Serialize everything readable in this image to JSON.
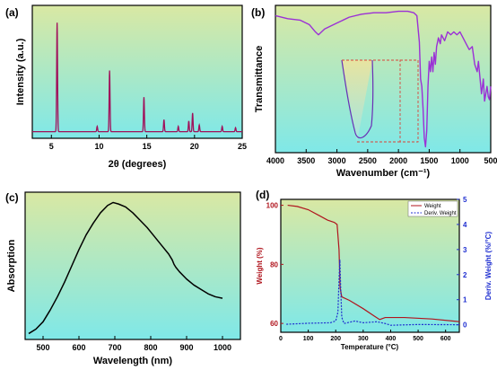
{
  "colors": {
    "grad_top_green": "#d9e8a3",
    "grad_bottom_cyan": "#7fe8e8",
    "xrd_line": "#a0105a",
    "ftir_line": "#9b30d6",
    "uv_line": "#000000",
    "tga_weight": "#b0151e",
    "tga_deriv": "#1f2fd0",
    "inset_frame": "#d9453a"
  },
  "chart_data": [
    {
      "panel": "(a)",
      "type": "line",
      "xlabel": "2θ (degrees)",
      "ylabel": "Intensity (a.u.)",
      "xlim": [
        3,
        25
      ],
      "ylim": [
        0,
        1
      ],
      "x_ticks": [
        5,
        10,
        15,
        20,
        25
      ],
      "y_ticks_labeled": false,
      "peaks": [
        {
          "x": 5.6,
          "y": 0.82
        },
        {
          "x": 9.8,
          "y": 0.04
        },
        {
          "x": 11.1,
          "y": 0.46
        },
        {
          "x": 14.7,
          "y": 0.26
        },
        {
          "x": 16.8,
          "y": 0.09
        },
        {
          "x": 18.3,
          "y": 0.04
        },
        {
          "x": 19.4,
          "y": 0.08
        },
        {
          "x": 19.8,
          "y": 0.14
        },
        {
          "x": 20.5,
          "y": 0.05
        },
        {
          "x": 22.9,
          "y": 0.04
        },
        {
          "x": 24.3,
          "y": 0.03
        }
      ],
      "baseline": 0.05
    },
    {
      "panel": "(b)",
      "type": "line",
      "xlabel": "Wavenumber (cm⁻¹)",
      "ylabel": "Transmittance",
      "xlim": [
        4000,
        500
      ],
      "ylim": [
        0,
        1
      ],
      "x_ticks": [
        4000,
        3500,
        3000,
        2500,
        2000,
        1500,
        1000,
        500
      ],
      "y_ticks_labeled": false,
      "points": [
        [
          4000,
          0.93
        ],
        [
          3800,
          0.91
        ],
        [
          3600,
          0.9
        ],
        [
          3450,
          0.87
        ],
        [
          3350,
          0.82
        ],
        [
          3300,
          0.8
        ],
        [
          3200,
          0.84
        ],
        [
          3000,
          0.88
        ],
        [
          2800,
          0.92
        ],
        [
          2600,
          0.94
        ],
        [
          2400,
          0.95
        ],
        [
          2200,
          0.95
        ],
        [
          2000,
          0.96
        ],
        [
          1850,
          0.96
        ],
        [
          1750,
          0.95
        ],
        [
          1700,
          0.93
        ],
        [
          1660,
          0.75
        ],
        [
          1640,
          0.5
        ],
        [
          1620,
          0.45
        ],
        [
          1600,
          0.3
        ],
        [
          1580,
          0.1
        ],
        [
          1560,
          0.04
        ],
        [
          1540,
          0.15
        ],
        [
          1520,
          0.45
        ],
        [
          1500,
          0.62
        ],
        [
          1480,
          0.55
        ],
        [
          1460,
          0.65
        ],
        [
          1440,
          0.55
        ],
        [
          1420,
          0.68
        ],
        [
          1400,
          0.6
        ],
        [
          1380,
          0.72
        ],
        [
          1350,
          0.78
        ],
        [
          1320,
          0.74
        ],
        [
          1300,
          0.8
        ],
        [
          1250,
          0.76
        ],
        [
          1200,
          0.82
        ],
        [
          1150,
          0.8
        ],
        [
          1100,
          0.82
        ],
        [
          1050,
          0.8
        ],
        [
          1000,
          0.82
        ],
        [
          950,
          0.78
        ],
        [
          900,
          0.74
        ],
        [
          850,
          0.7
        ],
        [
          800,
          0.72
        ],
        [
          760,
          0.6
        ],
        [
          720,
          0.55
        ],
        [
          700,
          0.62
        ],
        [
          650,
          0.4
        ],
        [
          620,
          0.5
        ],
        [
          600,
          0.35
        ],
        [
          560,
          0.45
        ],
        [
          540,
          0.38
        ],
        [
          520,
          0.36
        ],
        [
          500,
          0.45
        ]
      ],
      "inset": "magnified band around 1600 cm⁻¹"
    },
    {
      "panel": "(c)",
      "type": "line",
      "xlabel": "Wavelength (nm)",
      "ylabel": "Absorption",
      "xlim": [
        450,
        1050
      ],
      "ylim": [
        0,
        1
      ],
      "x_ticks": [
        500,
        600,
        700,
        800,
        900,
        1000
      ],
      "y_ticks_labeled": false,
      "points": [
        [
          460,
          0.04
        ],
        [
          480,
          0.07
        ],
        [
          500,
          0.12
        ],
        [
          520,
          0.2
        ],
        [
          540,
          0.29
        ],
        [
          560,
          0.39
        ],
        [
          580,
          0.5
        ],
        [
          600,
          0.61
        ],
        [
          620,
          0.71
        ],
        [
          640,
          0.79
        ],
        [
          660,
          0.86
        ],
        [
          680,
          0.91
        ],
        [
          695,
          0.93
        ],
        [
          710,
          0.92
        ],
        [
          730,
          0.9
        ],
        [
          750,
          0.86
        ],
        [
          770,
          0.81
        ],
        [
          790,
          0.76
        ],
        [
          810,
          0.7
        ],
        [
          830,
          0.64
        ],
        [
          850,
          0.58
        ],
        [
          860,
          0.54
        ],
        [
          865,
          0.51
        ],
        [
          870,
          0.49
        ],
        [
          880,
          0.46
        ],
        [
          900,
          0.41
        ],
        [
          920,
          0.37
        ],
        [
          940,
          0.34
        ],
        [
          960,
          0.31
        ],
        [
          980,
          0.29
        ],
        [
          1000,
          0.28
        ]
      ]
    },
    {
      "panel": "(d)",
      "type": "line",
      "xlabel": "Temperature (°C)",
      "ylabel": "Weight (%)",
      "y2label": "Deriv. Weight (%/°C)",
      "xlim": [
        0,
        650
      ],
      "ylim": [
        57,
        102
      ],
      "y2lim": [
        -0.3,
        5
      ],
      "x_ticks": [
        0,
        100,
        200,
        300,
        400,
        500,
        600
      ],
      "y_ticks": [
        60,
        80,
        100
      ],
      "y2_ticks": [
        0,
        1,
        2,
        3,
        4,
        5
      ],
      "legend": [
        "Weight",
        "Deriv. Weight"
      ],
      "legend_position": "top-right",
      "series": [
        {
          "name": "Weight",
          "points": [
            [
              25,
              100
            ],
            [
              60,
              99.6
            ],
            [
              100,
              98.5
            ],
            [
              140,
              96.5
            ],
            [
              170,
              95.0
            ],
            [
              195,
              94.2
            ],
            [
              205,
              93.5
            ],
            [
              212,
              85
            ],
            [
              216,
              72
            ],
            [
              222,
              69
            ],
            [
              250,
              67.8
            ],
            [
              300,
              65
            ],
            [
              340,
              62.5
            ],
            [
              360,
              61.3
            ],
            [
              380,
              62
            ],
            [
              450,
              62
            ],
            [
              550,
              61.5
            ],
            [
              650,
              60.6
            ]
          ]
        },
        {
          "name": "Deriv. Weight",
          "points": [
            [
              20,
              0.02
            ],
            [
              100,
              0.06
            ],
            [
              180,
              0.08
            ],
            [
              200,
              0.15
            ],
            [
              208,
              0.5
            ],
            [
              212,
              1.8
            ],
            [
              215,
              2.6
            ],
            [
              218,
              1.5
            ],
            [
              222,
              0.3
            ],
            [
              230,
              0.05
            ],
            [
              270,
              0.15
            ],
            [
              300,
              0.08
            ],
            [
              350,
              0.12
            ],
            [
              380,
              0.05
            ],
            [
              400,
              -0.02
            ],
            [
              500,
              0.01
            ],
            [
              650,
              0.0
            ]
          ]
        }
      ]
    }
  ]
}
